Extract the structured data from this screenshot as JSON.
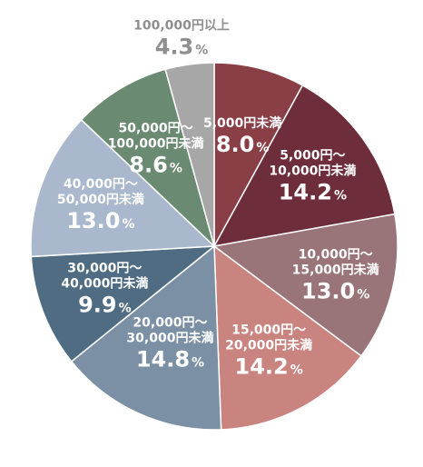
{
  "chart_data": {
    "type": "pie",
    "title": "",
    "start": "top",
    "direction": "clockwise",
    "slices": [
      {
        "label_lines": [
          "5,000円未満"
        ],
        "value": 8.0,
        "value_text": "8.0",
        "unit": "%",
        "color": "#8a3f47",
        "text_color": "#ffffff"
      },
      {
        "label_lines": [
          "5,000円〜",
          "10,000円未満"
        ],
        "value": 14.2,
        "value_text": "14.2",
        "unit": "%",
        "color": "#6e2d3b",
        "text_color": "#ffffff"
      },
      {
        "label_lines": [
          "10,000円〜",
          "15,000円未満"
        ],
        "value": 13.0,
        "value_text": "13.0",
        "unit": "%",
        "color": "#997478",
        "text_color": "#ffffff"
      },
      {
        "label_lines": [
          "15,000円〜",
          "20,000円未満"
        ],
        "value": 14.2,
        "value_text": "14.2",
        "unit": "%",
        "color": "#c9847f",
        "text_color": "#ffffff"
      },
      {
        "label_lines": [
          "20,000円〜",
          "30,000円未満"
        ],
        "value": 14.8,
        "value_text": "14.8",
        "unit": "%",
        "color": "#7b90a4",
        "text_color": "#ffffff"
      },
      {
        "label_lines": [
          "30,000円〜",
          "40,000円未満"
        ],
        "value": 9.9,
        "value_text": "9.9",
        "unit": "%",
        "color": "#4f6c82",
        "text_color": "#ffffff"
      },
      {
        "label_lines": [
          "40,000円〜",
          "50,000円未満"
        ],
        "value": 13.0,
        "value_text": "13.0",
        "unit": "%",
        "color": "#a9b8cc",
        "text_color": "#ffffff"
      },
      {
        "label_lines": [
          "50,000円〜",
          "100,000円未満"
        ],
        "value": 8.6,
        "value_text": "8.6",
        "unit": "%",
        "color": "#6b8a72",
        "text_color": "#ffffff"
      },
      {
        "label_lines": [
          "100,000円以上"
        ],
        "value": 4.3,
        "value_text": "4.3",
        "unit": "%",
        "color": "#a7a7a7",
        "text_color": "#8f8f8f",
        "label_outside": true
      }
    ]
  }
}
